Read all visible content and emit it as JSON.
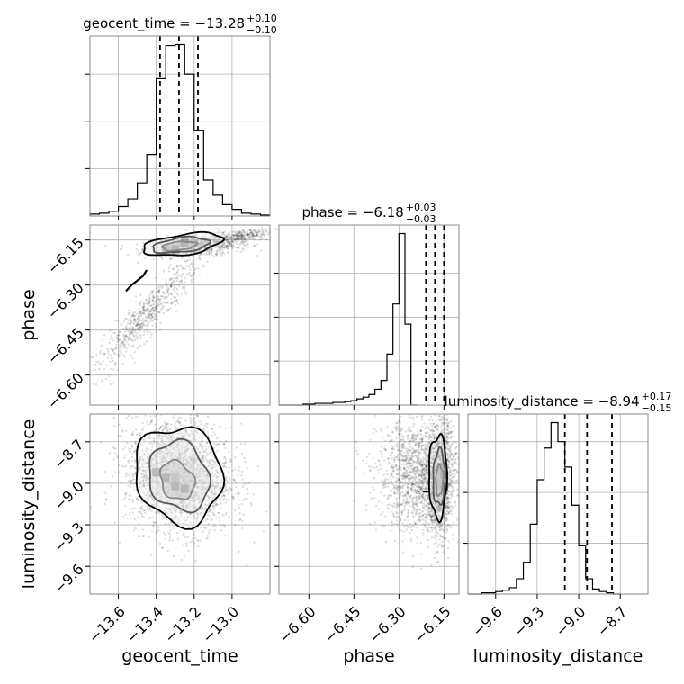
{
  "chart_data": {
    "type": "corner",
    "parameters": [
      {
        "name": "geocent_time",
        "axis_label": "geocent_time",
        "title": "geocent_time = −13.28",
        "title_sup": "+0.10",
        "title_sub": "−0.10",
        "range": [
          -13.75,
          -12.8
        ],
        "ticks": [
          -13.6,
          -13.4,
          -13.2,
          -13.0
        ],
        "tick_labels": [
          "−13.6",
          "−13.4",
          "−13.2",
          "−13.0"
        ],
        "quantiles": [
          -13.38,
          -13.28,
          -13.18
        ],
        "hist": {
          "edges_start": -13.75,
          "bin_width": 0.05,
          "counts": [
            2,
            3,
            5,
            10,
            18,
            35,
            65,
            145,
            180,
            181,
            150,
            90,
            38,
            22,
            12,
            7,
            3,
            2,
            1
          ]
        }
      },
      {
        "name": "phase",
        "axis_label": "phase",
        "title": "phase = −6.18",
        "title_sup": "+0.03",
        "title_sub": "−0.03",
        "range": [
          -6.7,
          -6.1
        ],
        "ticks": [
          -6.6,
          -6.45,
          -6.3,
          -6.15
        ],
        "tick_labels": [
          "−6.60",
          "−6.45",
          "−6.30",
          "−6.15"
        ],
        "quantiles": [
          -6.21,
          -6.18,
          -6.15
        ],
        "hist": {
          "edges_start": -6.7,
          "bin_width": 0.02,
          "counts": [
            0,
            0,
            0,
            0,
            1,
            1,
            2,
            2,
            2,
            3,
            3,
            4,
            5,
            7,
            9,
            12,
            18,
            28,
            58,
            115,
            195,
            92,
            0
          ]
        }
      },
      {
        "name": "luminosity_distance",
        "axis_label": "luminosity_distance",
        "title": "luminosity_distance = −8.94",
        "title_sup": "+0.17",
        "title_sub": "−0.15",
        "range": [
          -9.8,
          -8.5
        ],
        "ticks": [
          -9.6,
          -9.3,
          -9.0,
          -8.7
        ],
        "tick_labels": [
          "−9.6",
          "−9.3",
          "−9.0",
          "−8.7"
        ],
        "quantiles": [
          -9.1,
          -8.94,
          -8.76
        ],
        "hist": {
          "edges_start": -9.8,
          "bin_width": 0.05,
          "counts": [
            0,
            0,
            1,
            1,
            2,
            3,
            5,
            12,
            25,
            55,
            90,
            115,
            135,
            120,
            100,
            70,
            38,
            12,
            4,
            2,
            1,
            0
          ]
        }
      }
    ],
    "scatter_2d": [
      {
        "x_param": "geocent_time",
        "y_param": "phase",
        "clouds": [
          {
            "cx": -13.18,
            "cy": -6.17,
            "sx": 0.14,
            "sy": 0.018,
            "n": 700,
            "rho": 0.3
          },
          {
            "cx": -13.45,
            "cy": -6.4,
            "sx": 0.14,
            "sy": 0.1,
            "n": 650,
            "rho": 0.93
          },
          {
            "cx": -12.95,
            "cy": -6.135,
            "sx": 0.08,
            "sy": 0.01,
            "n": 250,
            "rho": 0.4
          }
        ],
        "contours": [
          {
            "cx": -13.28,
            "cy": -6.17,
            "rx": 0.09,
            "ry": 0.015,
            "rho": 0.35
          },
          {
            "cx": -13.27,
            "cy": -6.167,
            "rx": 0.15,
            "ry": 0.026,
            "rho": 0.4
          },
          {
            "cx": -13.26,
            "cy": -6.165,
            "rx": 0.21,
            "ry": 0.038,
            "rho": 0.45
          }
        ],
        "tail": [
          [
            -13.45,
            -6.25
          ],
          [
            -13.47,
            -6.27
          ],
          [
            -13.53,
            -6.3
          ],
          [
            -13.56,
            -6.32
          ]
        ],
        "dense_cells": [
          [
            -13.25,
            -6.16,
            3
          ],
          [
            -13.3,
            -6.18,
            3
          ],
          [
            -13.2,
            -6.16,
            2
          ],
          [
            -13.35,
            -6.18,
            2
          ]
        ]
      },
      {
        "x_param": "geocent_time",
        "y_param": "luminosity_distance",
        "clouds": [
          {
            "cx": -13.28,
            "cy": -8.94,
            "sx": 0.14,
            "sy": 0.2,
            "n": 2300,
            "rho": -0.1
          }
        ],
        "contours": [
          {
            "cx": -13.29,
            "cy": -8.98,
            "rx": 0.09,
            "ry": 0.14,
            "rho": -0.2
          },
          {
            "cx": -13.28,
            "cy": -8.95,
            "rx": 0.16,
            "ry": 0.25,
            "rho": -0.15
          },
          {
            "cx": -13.28,
            "cy": -8.94,
            "rx": 0.23,
            "ry": 0.35,
            "rho": -0.1
          }
        ],
        "tail": [],
        "dense_cells": [
          [
            -13.35,
            -8.96,
            3
          ],
          [
            -13.3,
            -9.02,
            3
          ],
          [
            -13.25,
            -9.04,
            3
          ],
          [
            -13.3,
            -8.96,
            2
          ],
          [
            -13.4,
            -8.92,
            2
          ]
        ]
      },
      {
        "x_param": "phase",
        "y_param": "luminosity_distance",
        "clouds": [
          {
            "cx": -6.23,
            "cy": -8.94,
            "sx": 0.07,
            "sy": 0.2,
            "n": 1600,
            "rho": 0.0
          },
          {
            "cx": -6.165,
            "cy": -8.96,
            "sx": 0.02,
            "sy": 0.22,
            "n": 1100,
            "rho": 0.1
          }
        ],
        "contours": [
          {
            "cx": -6.165,
            "cy": -8.98,
            "rx": 0.012,
            "ry": 0.11,
            "rho": 0.1
          },
          {
            "cx": -6.166,
            "cy": -8.96,
            "rx": 0.02,
            "ry": 0.2,
            "rho": 0.05
          },
          {
            "cx": -6.17,
            "cy": -8.95,
            "rx": 0.03,
            "ry": 0.3,
            "rho": 0.0
          }
        ],
        "tail": [
          [
            -6.2,
            -9.06
          ],
          [
            -6.22,
            -9.06
          ]
        ],
        "dense_cells": [
          [
            -6.15,
            -8.94,
            3
          ],
          [
            -6.15,
            -9.02,
            3
          ],
          [
            -6.16,
            -8.88,
            2
          ],
          [
            -6.17,
            -9.0,
            2
          ]
        ]
      }
    ]
  }
}
